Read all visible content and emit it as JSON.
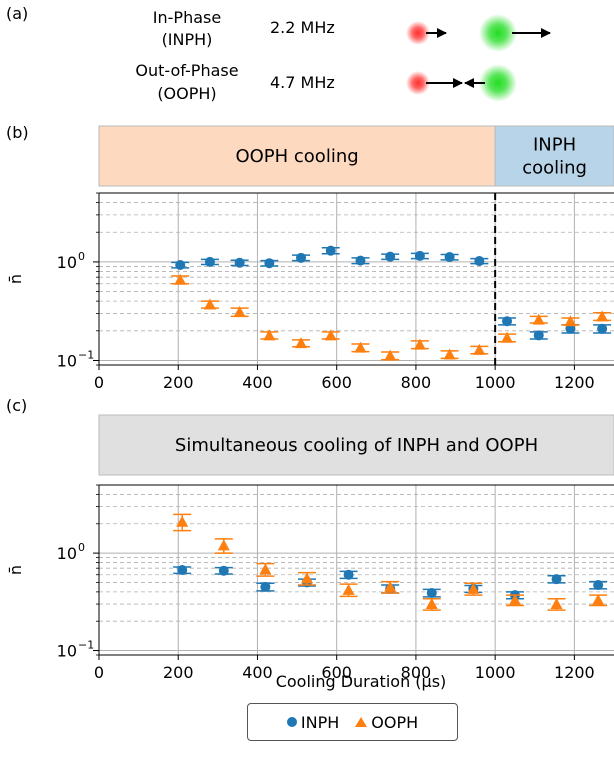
{
  "panel_a": {
    "label": "(a)",
    "modes": [
      {
        "name_line1": "In-Phase",
        "name_line2": "(INPH)",
        "freq": "2.2 MHz",
        "arrows": "same-direction"
      },
      {
        "name_line1": "Out-of-Phase",
        "name_line2": "(OOPH)",
        "freq": "4.7 MHz",
        "arrows": "opposite-direction"
      }
    ],
    "ion_colors": {
      "left": "#ff3030",
      "right": "#22dd22"
    }
  },
  "legend": {
    "items": [
      {
        "label": "INPH",
        "marker": "circle",
        "color": "#1f77b4"
      },
      {
        "label": "OOPH",
        "marker": "triangle",
        "color": "#ff7f0e"
      }
    ]
  },
  "chart_data": [
    {
      "type": "scatter",
      "panel_label": "(b)",
      "bands": [
        {
          "label_lines": [
            "OOPH cooling"
          ],
          "x_range": [
            0,
            1000
          ],
          "color": "#fdd9bf"
        },
        {
          "label_lines": [
            "INPH",
            "cooling"
          ],
          "x_range": [
            1000,
            1300
          ],
          "color": "#b8d4e8"
        }
      ],
      "vline": 1000,
      "xlabel": "",
      "ylabel": "n̄",
      "ylog": true,
      "xlim": [
        0,
        1300
      ],
      "ylim": [
        0.09,
        5
      ],
      "xticks": [
        0,
        200,
        400,
        600,
        800,
        1000,
        1200
      ],
      "series": [
        {
          "name": "INPH",
          "marker": "circle",
          "color": "#1f77b4",
          "x": [
            205,
            280,
            355,
            430,
            510,
            585,
            660,
            735,
            810,
            885,
            960,
            1030,
            1110,
            1190,
            1270
          ],
          "y": [
            0.93,
            1.0,
            0.98,
            0.97,
            1.1,
            1.3,
            1.03,
            1.13,
            1.15,
            1.12,
            1.02,
            0.25,
            0.18,
            0.21,
            0.21
          ],
          "err": [
            0.06,
            0.06,
            0.06,
            0.06,
            0.07,
            0.09,
            0.07,
            0.07,
            0.07,
            0.07,
            0.06,
            0.02,
            0.015,
            0.02,
            0.02
          ]
        },
        {
          "name": "OOPH",
          "marker": "triangle",
          "color": "#ff7f0e",
          "x": [
            205,
            280,
            355,
            430,
            510,
            585,
            660,
            735,
            810,
            885,
            960,
            1030,
            1110,
            1190,
            1270
          ],
          "y": [
            0.66,
            0.37,
            0.31,
            0.18,
            0.15,
            0.18,
            0.135,
            0.112,
            0.145,
            0.115,
            0.128,
            0.17,
            0.26,
            0.25,
            0.28
          ],
          "err": [
            0.06,
            0.03,
            0.03,
            0.015,
            0.012,
            0.015,
            0.012,
            0.01,
            0.013,
            0.01,
            0.011,
            0.015,
            0.02,
            0.02,
            0.025
          ]
        }
      ]
    },
    {
      "type": "scatter",
      "panel_label": "(c)",
      "bands": [
        {
          "label_lines": [
            "Simultaneous cooling of INPH and OOPH"
          ],
          "x_range": [
            0,
            1300
          ],
          "color": "#e0e0e0"
        }
      ],
      "xlabel": "Cooling Duration (μs)",
      "ylabel": "n̄",
      "ylog": true,
      "xlim": [
        0,
        1300
      ],
      "ylim": [
        0.09,
        5
      ],
      "xticks": [
        0,
        200,
        400,
        600,
        800,
        1000,
        1200
      ],
      "series": [
        {
          "name": "INPH",
          "marker": "circle",
          "color": "#1f77b4",
          "x": [
            210,
            315,
            420,
            525,
            630,
            735,
            840,
            945,
            1050,
            1155,
            1260
          ],
          "y": [
            0.67,
            0.66,
            0.45,
            0.5,
            0.6,
            0.43,
            0.39,
            0.43,
            0.37,
            0.54,
            0.47
          ],
          "err": [
            0.05,
            0.05,
            0.04,
            0.04,
            0.05,
            0.04,
            0.035,
            0.035,
            0.03,
            0.045,
            0.04
          ]
        },
        {
          "name": "OOPH",
          "marker": "triangle",
          "color": "#ff7f0e",
          "x": [
            210,
            315,
            420,
            525,
            630,
            735,
            840,
            945,
            1050,
            1155,
            1260
          ],
          "y": [
            2.1,
            1.2,
            0.68,
            0.55,
            0.42,
            0.45,
            0.3,
            0.43,
            0.33,
            0.3,
            0.33
          ],
          "err": [
            0.4,
            0.2,
            0.1,
            0.08,
            0.06,
            0.06,
            0.04,
            0.06,
            0.04,
            0.04,
            0.04
          ]
        }
      ]
    }
  ]
}
